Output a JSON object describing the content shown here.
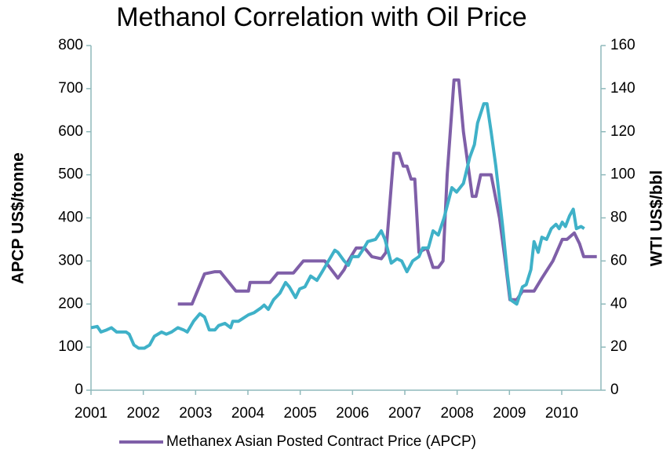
{
  "chart_data": {
    "type": "line",
    "title": "Methanol Correlation with Oil Price",
    "ylabel": "APCP US$/tonne",
    "y2label": "WTI US$/bbl",
    "xlim": [
      2001,
      2010.75
    ],
    "xticks": [
      2001,
      2002,
      2003,
      2004,
      2005,
      2006,
      2007,
      2008,
      2009,
      2010
    ],
    "ylim": [
      0,
      800
    ],
    "yticks": [
      0,
      100,
      200,
      300,
      400,
      500,
      600,
      700,
      800
    ],
    "y2lim": [
      0,
      160
    ],
    "y2ticks": [
      0,
      20,
      40,
      60,
      80,
      100,
      120,
      140,
      160
    ],
    "grid": false,
    "legend": "bottom",
    "series": [
      {
        "name": "Methanex Asian Posted Contract Price (APCP)",
        "color": "#7f5fa8",
        "x": [
          2002.66,
          2002.93,
          2003.17,
          2003.37,
          2003.47,
          2003.77,
          2004.01,
          2004.04,
          2004.42,
          2004.57,
          2004.87,
          2005.06,
          2005.47,
          2005.72,
          2005.84,
          2005.92,
          2006.07,
          2006.23,
          2006.37,
          2006.55,
          2006.64,
          2006.79,
          2006.89,
          2006.97,
          2007.04,
          2007.12,
          2007.19,
          2007.27,
          2007.42,
          2007.54,
          2007.64,
          2007.73,
          2007.81,
          2007.94,
          2008.03,
          2008.12,
          2008.29,
          2008.36,
          2008.45,
          2008.65,
          2008.81,
          2008.92,
          2009.01,
          2009.14,
          2009.25,
          2009.47,
          2009.62,
          2009.83,
          2010.01,
          2010.1,
          2010.24,
          2010.34,
          2010.42,
          2010.67
        ],
        "values": [
          200,
          200,
          270,
          275,
          275,
          230,
          230,
          250,
          250,
          272,
          272,
          300,
          300,
          260,
          280,
          300,
          330,
          330,
          310,
          305,
          320,
          550,
          550,
          520,
          520,
          490,
          490,
          320,
          330,
          285,
          285,
          300,
          500,
          720,
          720,
          600,
          450,
          450,
          500,
          500,
          400,
          300,
          210,
          210,
          230,
          230,
          260,
          300,
          350,
          350,
          365,
          340,
          310,
          310
        ]
      },
      {
        "color": "#3fb1c8",
        "axis": "y2",
        "x": [
          2001.0,
          2001.12,
          2001.19,
          2001.3,
          2001.39,
          2001.49,
          2001.57,
          2001.67,
          2001.73,
          2001.82,
          2001.91,
          2002.02,
          2002.12,
          2002.21,
          2002.35,
          2002.44,
          2002.54,
          2002.66,
          2002.77,
          2002.84,
          2002.96,
          2003.08,
          2003.17,
          2003.26,
          2003.37,
          2003.44,
          2003.56,
          2003.67,
          2003.71,
          2003.82,
          2004.01,
          2004.12,
          2004.24,
          2004.31,
          2004.39,
          2004.49,
          2004.61,
          2004.72,
          2004.79,
          2004.91,
          2004.99,
          2005.09,
          2005.2,
          2005.32,
          2005.42,
          2005.54,
          2005.66,
          2005.72,
          2005.84,
          2005.92,
          2005.99,
          2006.11,
          2006.22,
          2006.29,
          2006.44,
          2006.55,
          2006.62,
          2006.74,
          2006.85,
          2006.94,
          2007.04,
          2007.15,
          2007.27,
          2007.34,
          2007.45,
          2007.54,
          2007.64,
          2007.75,
          2007.9,
          2007.99,
          2008.12,
          2008.24,
          2008.33,
          2008.39,
          2008.51,
          2008.57,
          2008.65,
          2008.74,
          2008.87,
          2008.96,
          2009.02,
          2009.14,
          2009.25,
          2009.32,
          2009.41,
          2009.47,
          2009.55,
          2009.62,
          2009.71,
          2009.8,
          2009.89,
          2009.95,
          2010.01,
          2010.07,
          2010.15,
          2010.22,
          2010.28,
          2010.37,
          2010.43
        ],
        "values": [
          29,
          29.6,
          27,
          28,
          29,
          27,
          27,
          27,
          26,
          21,
          19.5,
          19.5,
          21,
          25,
          27,
          26,
          27,
          29,
          28,
          27,
          32,
          35.5,
          34,
          28,
          28,
          30,
          31,
          29,
          32,
          32,
          35,
          36,
          38,
          39.5,
          37.5,
          42,
          45,
          50,
          48,
          43,
          47,
          48,
          53,
          51,
          55,
          60,
          65,
          64,
          60,
          58,
          62,
          62,
          66,
          69,
          70,
          74,
          70,
          59,
          61,
          60,
          55,
          60,
          62,
          66,
          66,
          74,
          72,
          80,
          94,
          92,
          96,
          108,
          114,
          124,
          133,
          133,
          120,
          104,
          76,
          54,
          42,
          40,
          48,
          49,
          56,
          69,
          64,
          71,
          70,
          75,
          77,
          75,
          78,
          76,
          81,
          84,
          75,
          76,
          75
        ]
      }
    ]
  }
}
